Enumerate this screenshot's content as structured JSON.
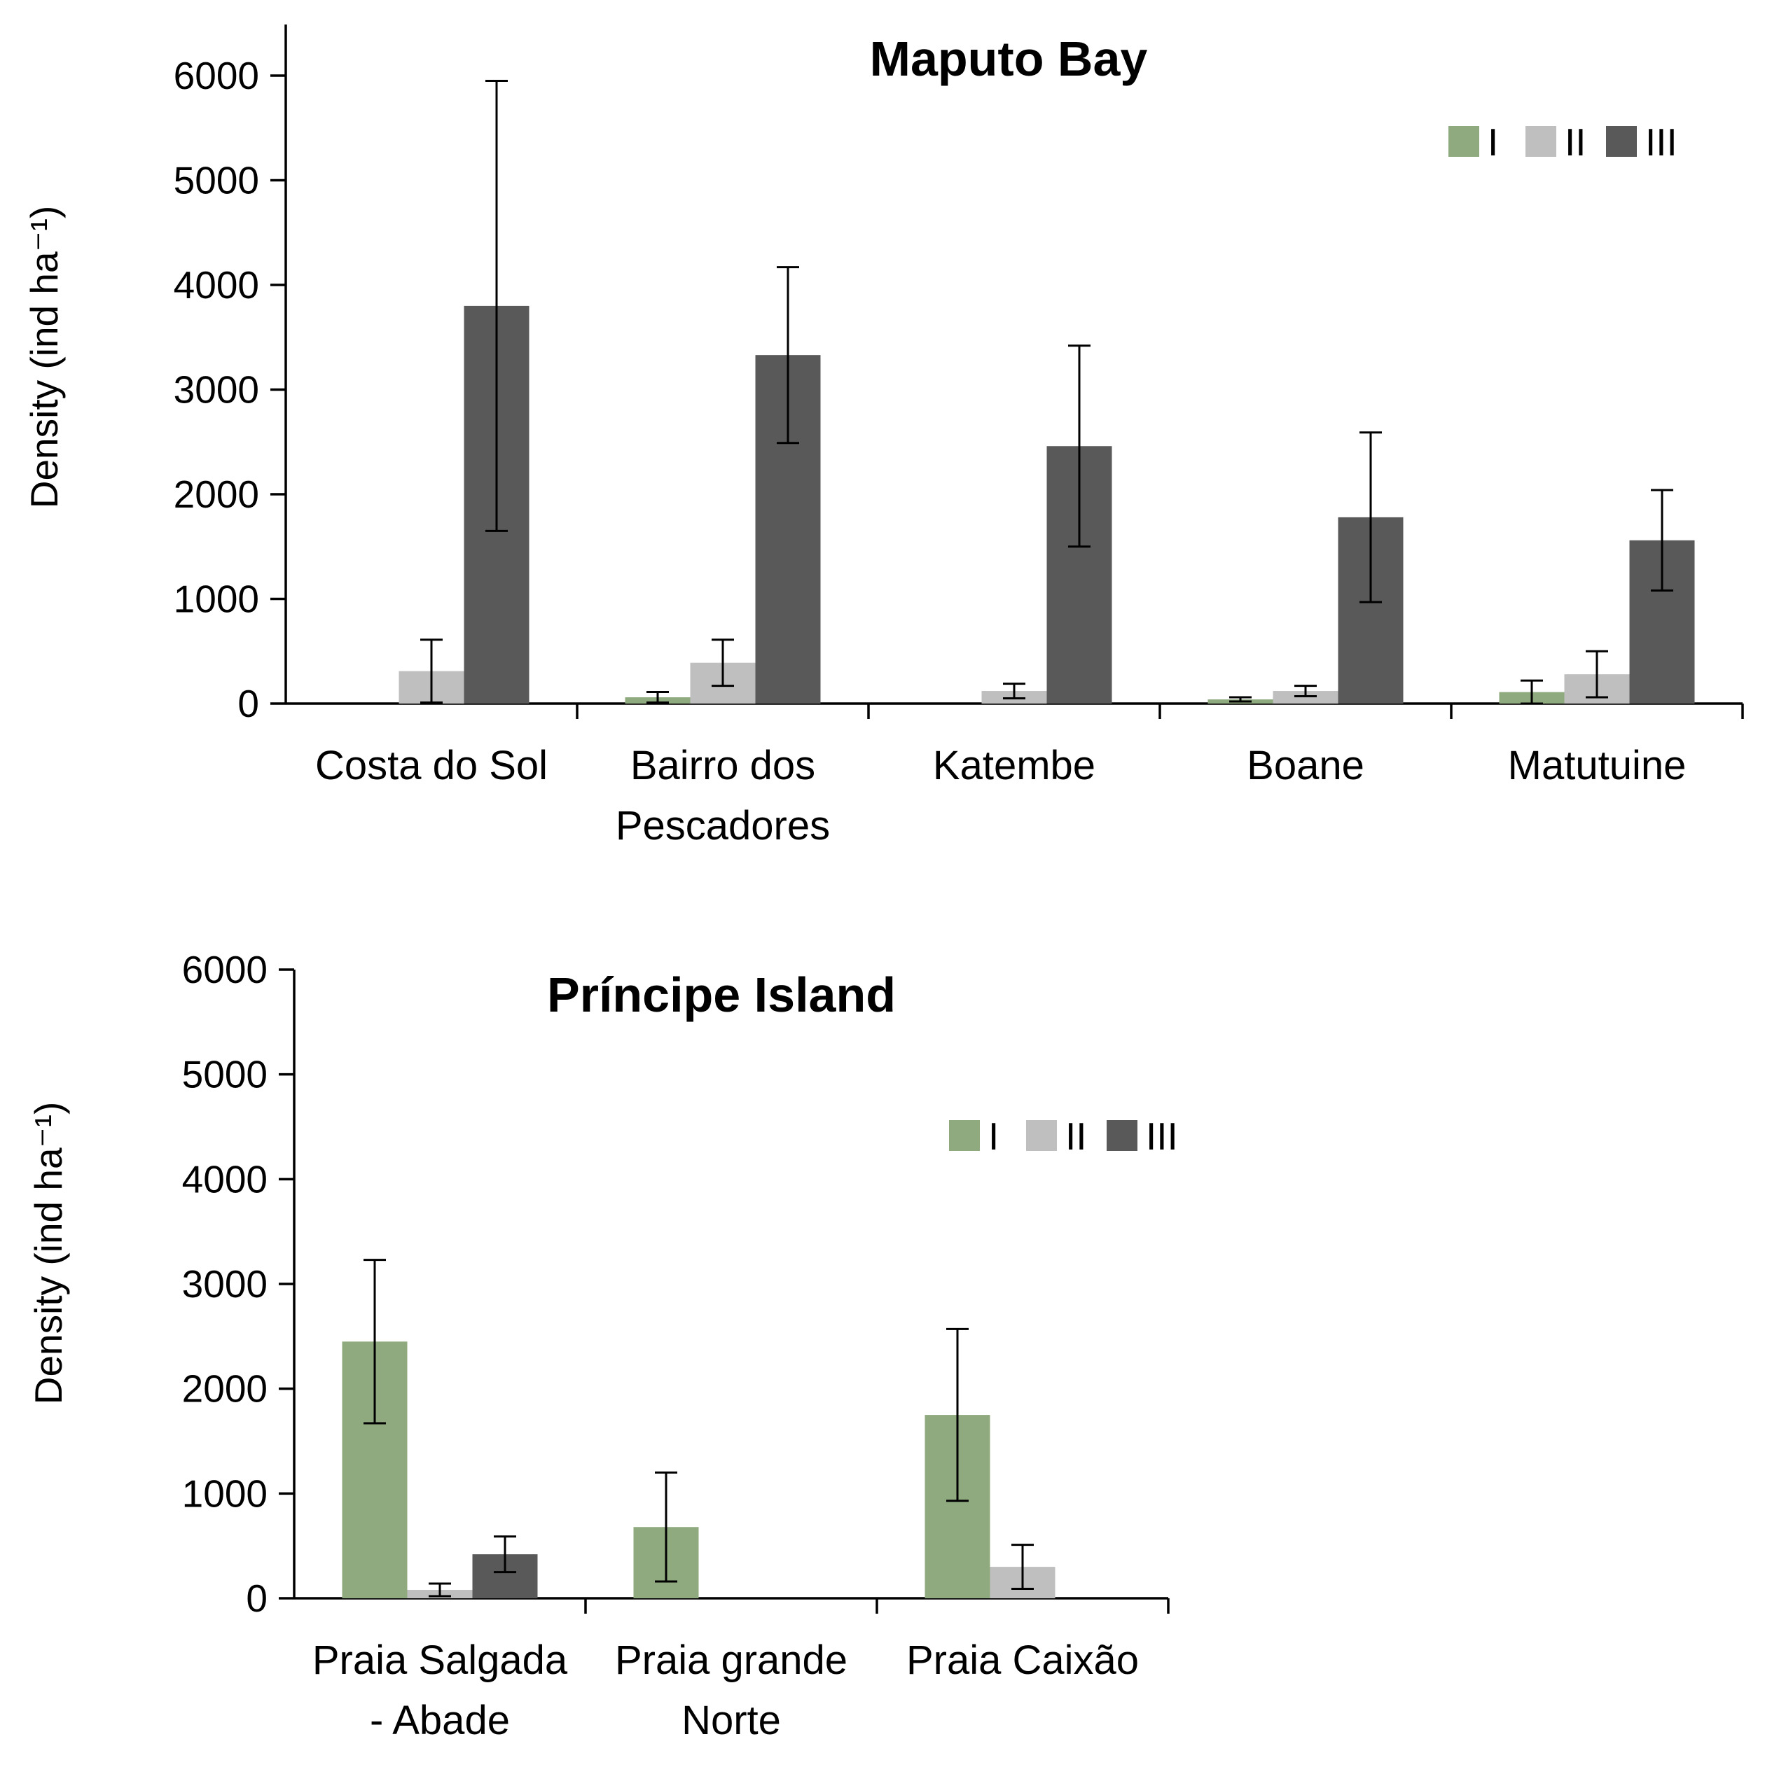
{
  "colors": {
    "I": "#8faa7e",
    "II": "#bfbfbf",
    "III": "#595959"
  },
  "legend": [
    "I",
    "II",
    "III"
  ],
  "chart_data": [
    {
      "type": "bar",
      "title": "Maputo Bay",
      "ylabel": "Density (ind ha⁻¹)",
      "ylim": [
        0,
        6000
      ],
      "yticks": [
        0,
        1000,
        2000,
        3000,
        4000,
        5000,
        6000
      ],
      "legend_position": "top-right",
      "categories": [
        [
          "Costa do Sol"
        ],
        [
          "Bairro dos",
          "Pescadores"
        ],
        [
          "Katembe"
        ],
        [
          "Boane"
        ],
        [
          "Matutuine"
        ]
      ],
      "series": [
        {
          "name": "I",
          "values": [
            0,
            60,
            0,
            40,
            110
          ],
          "errors": [
            0,
            50,
            0,
            20,
            110
          ]
        },
        {
          "name": "II",
          "values": [
            310,
            390,
            120,
            120,
            280
          ],
          "errors": [
            300,
            220,
            70,
            50,
            220
          ]
        },
        {
          "name": "III",
          "values": [
            3800,
            3330,
            2460,
            1780,
            1560
          ],
          "errors": [
            2150,
            840,
            960,
            810,
            480
          ]
        }
      ]
    },
    {
      "type": "bar",
      "title": "Príncipe Island",
      "ylabel": "Density (ind ha⁻¹)",
      "ylim": [
        0,
        6000
      ],
      "yticks": [
        0,
        1000,
        2000,
        3000,
        4000,
        5000,
        6000
      ],
      "legend_position": "upper-center",
      "categories": [
        [
          "Praia Salgada",
          "- Abade"
        ],
        [
          "Praia grande",
          "Norte"
        ],
        [
          "Praia Caixão"
        ]
      ],
      "series": [
        {
          "name": "I",
          "values": [
            2450,
            680,
            1750
          ],
          "errors": [
            780,
            520,
            820
          ]
        },
        {
          "name": "II",
          "values": [
            80,
            0,
            300
          ],
          "errors": [
            60,
            0,
            210
          ]
        },
        {
          "name": "III",
          "values": [
            420,
            0,
            0
          ],
          "errors": [
            170,
            0,
            0
          ]
        }
      ]
    }
  ]
}
